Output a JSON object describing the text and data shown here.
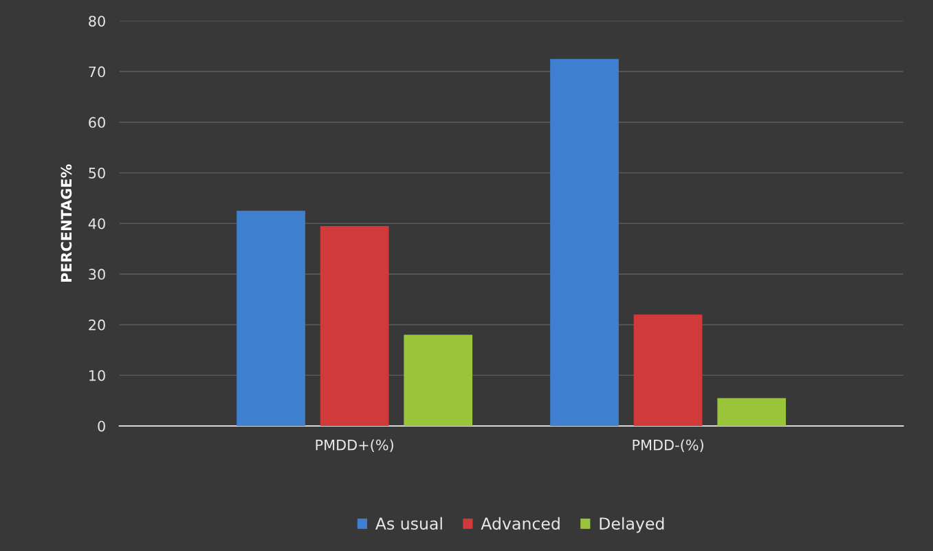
{
  "chart_data": {
    "type": "bar",
    "ylabel": "PERCENTAGE%",
    "categories": [
      "PMDD+(%)",
      "PMDD-(%)"
    ],
    "series": [
      {
        "name": "As usual",
        "color": "#3f7fd0",
        "values": [
          42.5,
          72.5
        ]
      },
      {
        "name": "Advanced",
        "color": "#d03a3a",
        "values": [
          39.5,
          22
        ]
      },
      {
        "name": "Delayed",
        "color": "#9ac43a",
        "values": [
          18,
          5.5
        ]
      }
    ],
    "ylim": [
      0,
      80
    ],
    "yticks": [
      0,
      10,
      20,
      30,
      40,
      50,
      60,
      70,
      80
    ],
    "grid": "y",
    "legend": "bottom"
  }
}
